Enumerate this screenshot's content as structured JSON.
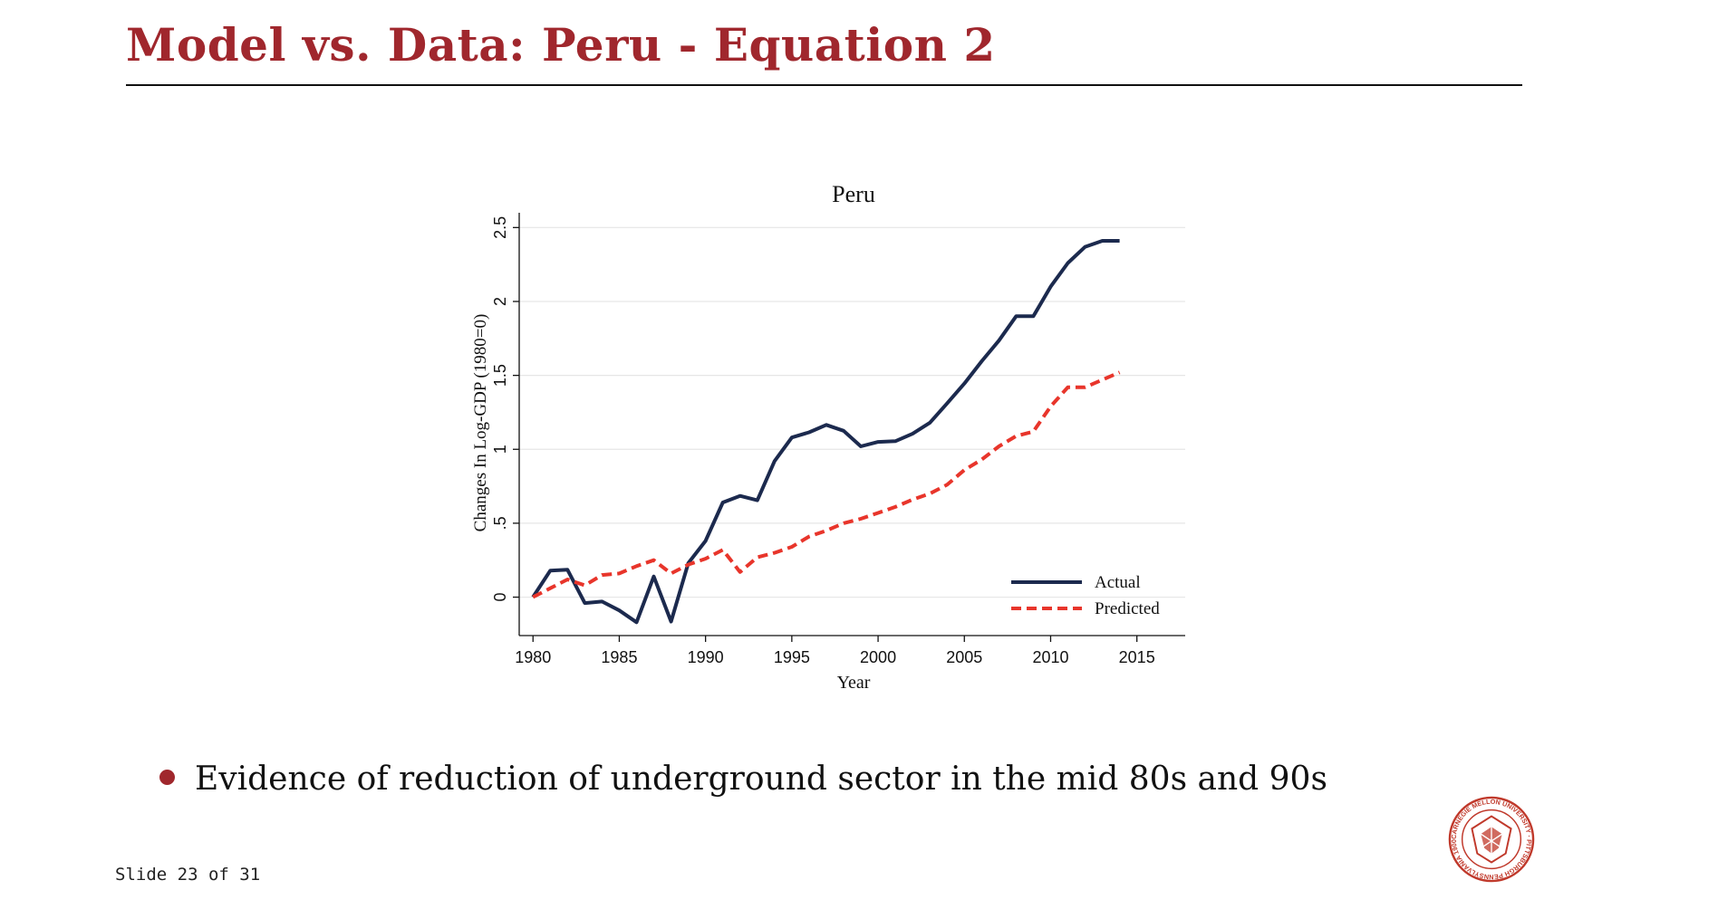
{
  "slide": {
    "title": "Model vs. Data: Peru - Equation 2",
    "bullet": "Evidence of reduction of underground sector in the mid 80s and 90s",
    "footer": "Slide 23 of 31",
    "logo": "Carnegie Mellon University seal",
    "logo_text": "CARNEGIE MELLON UNIVERSITY · PITTSBURGH PENNSYLVANIA 1900",
    "accent_color": "#a0272d"
  },
  "chart_data": {
    "type": "line",
    "title": "Peru",
    "xlabel": "Year",
    "ylabel": "Changes In Log-GDP (1980=0)",
    "xlim": [
      1979.2,
      2017.8
    ],
    "ylim": [
      -0.26,
      2.6
    ],
    "xticks": [
      1980,
      1985,
      1990,
      1995,
      2000,
      2005,
      2010,
      2015
    ],
    "xtick_labels": [
      "1980",
      "1985",
      "1990",
      "1995",
      "2000",
      "2005",
      "2010",
      "2015"
    ],
    "yticks": [
      0,
      0.5,
      1,
      1.5,
      2,
      2.5
    ],
    "ytick_labels": [
      "0",
      ".5",
      "1",
      "1.5",
      "2",
      "2.5"
    ],
    "grid": true,
    "legend_position": "bottom-right",
    "x": [
      1980,
      1981,
      1982,
      1983,
      1984,
      1985,
      1986,
      1987,
      1988,
      1989,
      1990,
      1991,
      1992,
      1993,
      1994,
      1995,
      1996,
      1997,
      1998,
      1999,
      2000,
      2001,
      2002,
      2003,
      2004,
      2005,
      2006,
      2007,
      2008,
      2009,
      2010,
      2011,
      2012,
      2013,
      2014
    ],
    "series": [
      {
        "name": "Actual",
        "color": "#1c2a4e",
        "style": "solid",
        "values": [
          0.0,
          0.18,
          0.185,
          -0.04,
          -0.03,
          -0.09,
          -0.17,
          0.14,
          -0.165,
          0.23,
          0.38,
          0.64,
          0.685,
          0.655,
          0.92,
          1.08,
          1.115,
          1.165,
          1.125,
          1.02,
          1.05,
          1.055,
          1.105,
          1.18,
          1.31,
          1.445,
          1.595,
          1.735,
          1.9,
          1.9,
          2.1,
          2.26,
          2.37,
          2.41,
          2.41
        ]
      },
      {
        "name": "Predicted",
        "color": "#e8352b",
        "style": "dashed",
        "values": [
          0.0,
          0.06,
          0.12,
          0.08,
          0.15,
          0.16,
          0.21,
          0.25,
          0.16,
          0.22,
          0.26,
          0.32,
          0.17,
          0.27,
          0.3,
          0.34,
          0.41,
          0.45,
          0.5,
          0.53,
          0.57,
          0.61,
          0.66,
          0.7,
          0.76,
          0.86,
          0.93,
          1.02,
          1.09,
          1.12,
          1.29,
          1.42,
          1.42,
          1.47,
          1.52
        ]
      }
    ]
  }
}
